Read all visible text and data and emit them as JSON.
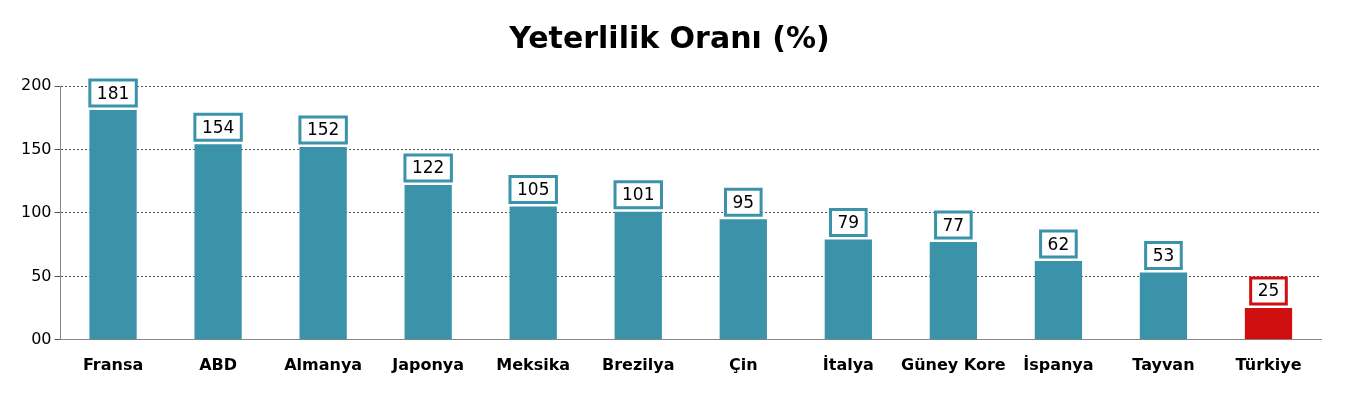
{
  "chart_data": {
    "type": "bar",
    "title": "Yeterlilik Oranı (%)",
    "categories": [
      "Fransa",
      "ABD",
      "Almanya",
      "Japonya",
      "Meksika",
      "Brezilya",
      "Çin",
      "İtalya",
      "Güney Kore",
      "İspanya",
      "Tayvan",
      "Türkiye"
    ],
    "values": [
      181,
      154,
      152,
      122,
      105,
      101,
      95,
      79,
      77,
      62,
      53,
      25
    ],
    "colors": [
      "#3a93a8",
      "#3a93a8",
      "#3a93a8",
      "#3a93a8",
      "#3a93a8",
      "#3a93a8",
      "#3a93a8",
      "#3a93a8",
      "#3a93a8",
      "#3a93a8",
      "#3a93a8",
      "#d01010"
    ],
    "ylim": [
      0,
      200
    ],
    "yticks": [
      {
        "value": 0,
        "label": "00"
      },
      50,
      100,
      150,
      200
    ],
    "grid": "y",
    "data_labels": true,
    "legend": false
  }
}
